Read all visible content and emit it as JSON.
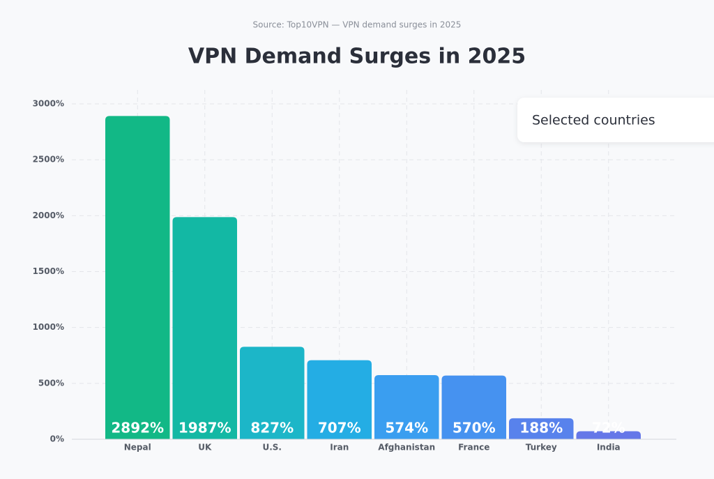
{
  "chart_data": {
    "type": "bar",
    "source": "Source: Top10VPN — VPN demand surges in 2025",
    "title": "VPN Demand Surges in 2025",
    "categories": [
      "Nepal",
      "UK",
      "U.S.",
      "Iran",
      "Afghanistan",
      "France",
      "Turkey",
      "India"
    ],
    "series": [
      {
        "name": "Selected countries",
        "values": [
          2892,
          1987,
          827,
          707,
          574,
          570,
          188,
          72
        ],
        "value_labels": [
          "2892%",
          "1987%",
          "827%",
          "707%",
          "574%",
          "570%",
          "188%",
          "72%"
        ],
        "colors": [
          "#12b886",
          "#13b8a4",
          "#1cb6c8",
          "#24ade4",
          "#3a9ef0",
          "#4692f0",
          "#5882ec",
          "#6577e8"
        ]
      }
    ],
    "ylim": [
      0,
      3000
    ],
    "yticks": [
      {
        "value": 0,
        "label": "0%"
      },
      {
        "value": 500,
        "label": "500%"
      },
      {
        "value": 1000,
        "label": "1000%"
      },
      {
        "value": 1500,
        "label": "1500%"
      },
      {
        "value": 2000,
        "label": "2000%"
      },
      {
        "value": 2500,
        "label": "2500%"
      },
      {
        "value": 3000,
        "label": "3000%"
      }
    ],
    "grid": true
  }
}
